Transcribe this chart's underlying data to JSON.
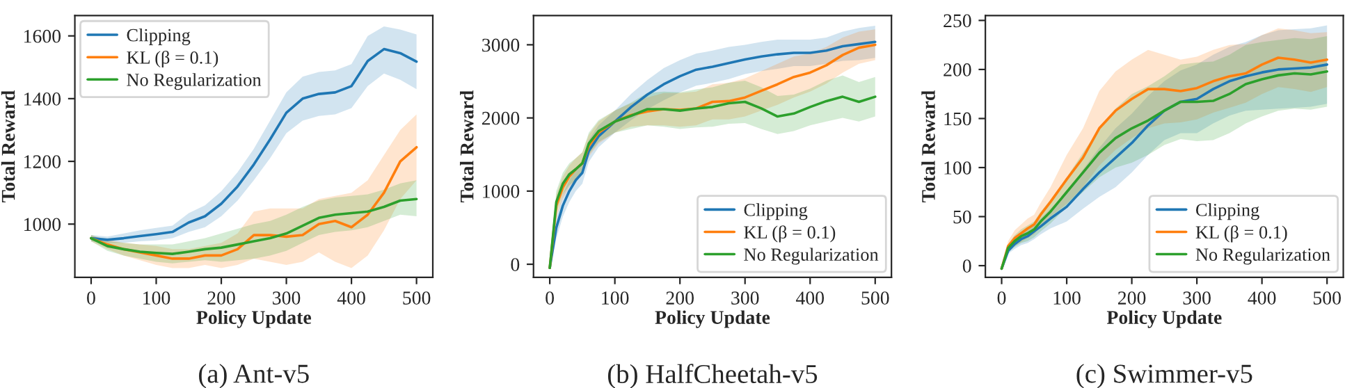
{
  "chart_data": [
    {
      "type": "line",
      "title": "(a) Ant-v5",
      "xlabel": "Policy Update",
      "ylabel": "Total Reward",
      "xlim": [
        -25,
        525
      ],
      "xticks": [
        0,
        100,
        200,
        300,
        400,
        500
      ],
      "ylim": [
        830,
        1665
      ],
      "yticks": [
        1000,
        1200,
        1400,
        1600
      ],
      "grid": false,
      "legend": "top left",
      "x": [
        0,
        25,
        50,
        75,
        100,
        125,
        150,
        175,
        200,
        225,
        250,
        275,
        300,
        325,
        350,
        375,
        400,
        425,
        450,
        475,
        500
      ],
      "series": [
        {
          "name": "Clipping",
          "color": "#1f77b4",
          "values": [
            955,
            950,
            955,
            962,
            968,
            975,
            1005,
            1025,
            1065,
            1120,
            1190,
            1270,
            1355,
            1400,
            1415,
            1420,
            1440,
            1520,
            1558,
            1545,
            1518
          ],
          "lower": [
            945,
            940,
            940,
            945,
            948,
            955,
            975,
            990,
            1025,
            1075,
            1140,
            1210,
            1290,
            1330,
            1345,
            1350,
            1370,
            1440,
            1480,
            1460,
            1430
          ],
          "upper": [
            965,
            960,
            970,
            980,
            988,
            995,
            1035,
            1060,
            1105,
            1165,
            1240,
            1330,
            1420,
            1470,
            1485,
            1490,
            1510,
            1600,
            1630,
            1620,
            1605
          ]
        },
        {
          "name": "KL (β = 0.1)",
          "color": "#ff7f0e",
          "values": [
            955,
            935,
            920,
            910,
            900,
            890,
            890,
            900,
            900,
            920,
            965,
            965,
            960,
            965,
            1000,
            1010,
            990,
            1030,
            1100,
            1200,
            1245
          ],
          "lower": [
            945,
            920,
            900,
            885,
            870,
            860,
            860,
            870,
            860,
            870,
            890,
            880,
            870,
            880,
            910,
            880,
            860,
            900,
            980,
            1080,
            1140
          ],
          "upper": [
            965,
            950,
            940,
            935,
            930,
            920,
            920,
            930,
            940,
            970,
            1040,
            1050,
            1050,
            1050,
            1080,
            1090,
            1100,
            1140,
            1220,
            1300,
            1350
          ]
        },
        {
          "name": "No Regularization",
          "color": "#2ca02c",
          "values": [
            955,
            930,
            920,
            912,
            908,
            905,
            912,
            920,
            925,
            935,
            945,
            955,
            970,
            995,
            1020,
            1030,
            1035,
            1040,
            1055,
            1075,
            1080
          ],
          "lower": [
            945,
            915,
            900,
            890,
            880,
            875,
            880,
            885,
            880,
            885,
            890,
            900,
            915,
            940,
            965,
            975,
            980,
            990,
            1010,
            1030,
            1025
          ],
          "upper": [
            965,
            945,
            940,
            935,
            935,
            935,
            945,
            955,
            970,
            985,
            1000,
            1010,
            1030,
            1055,
            1075,
            1085,
            1090,
            1095,
            1110,
            1130,
            1140
          ]
        }
      ]
    },
    {
      "type": "line",
      "title": "(b) HalfCheetah-v5",
      "xlabel": "Policy Update",
      "ylabel": "Total Reward",
      "xlim": [
        -25,
        525
      ],
      "xticks": [
        0,
        100,
        200,
        300,
        400,
        500
      ],
      "ylim": [
        -180,
        3400
      ],
      "yticks": [
        0,
        1000,
        2000,
        3000
      ],
      "grid": false,
      "legend": "bottom right",
      "x": [
        0,
        10,
        20,
        30,
        40,
        50,
        60,
        75,
        100,
        125,
        150,
        175,
        200,
        225,
        250,
        275,
        300,
        325,
        350,
        375,
        400,
        425,
        450,
        475,
        500
      ],
      "series": [
        {
          "name": "Clipping",
          "color": "#1f77b4",
          "values": [
            -50,
            500,
            800,
            1000,
            1150,
            1250,
            1550,
            1750,
            1950,
            2150,
            2320,
            2460,
            2570,
            2660,
            2700,
            2750,
            2800,
            2840,
            2870,
            2890,
            2890,
            2920,
            2980,
            3010,
            3040
          ],
          "lower": [
            -70,
            350,
            650,
            850,
            1000,
            1100,
            1400,
            1600,
            1800,
            1970,
            2120,
            2240,
            2350,
            2440,
            2480,
            2530,
            2600,
            2640,
            2670,
            2710,
            2710,
            2740,
            2780,
            2790,
            2820
          ],
          "upper": [
            -30,
            650,
            950,
            1150,
            1300,
            1400,
            1700,
            1900,
            2100,
            2330,
            2520,
            2680,
            2790,
            2880,
            2920,
            2970,
            3000,
            3040,
            3070,
            3070,
            3070,
            3100,
            3180,
            3230,
            3260
          ]
        },
        {
          "name": "KL (β = 0.1)",
          "color": "#ff7f0e",
          "values": [
            -50,
            800,
            1050,
            1200,
            1300,
            1380,
            1620,
            1800,
            1950,
            2040,
            2090,
            2120,
            2110,
            2130,
            2220,
            2230,
            2280,
            2370,
            2460,
            2560,
            2620,
            2720,
            2860,
            2960,
            3000
          ],
          "lower": [
            -70,
            650,
            900,
            1050,
            1150,
            1230,
            1470,
            1650,
            1800,
            1880,
            1900,
            1900,
            1880,
            1900,
            1980,
            1980,
            2020,
            2100,
            2180,
            2280,
            2360,
            2470,
            2620,
            2740,
            2790
          ],
          "upper": [
            -30,
            950,
            1200,
            1350,
            1450,
            1530,
            1770,
            1950,
            2100,
            2200,
            2280,
            2340,
            2340,
            2360,
            2460,
            2480,
            2540,
            2640,
            2740,
            2840,
            2880,
            2970,
            3100,
            3180,
            3210
          ]
        },
        {
          "name": "No Regularization",
          "color": "#2ca02c",
          "values": [
            -50,
            850,
            1100,
            1230,
            1300,
            1380,
            1650,
            1820,
            1950,
            2030,
            2120,
            2120,
            2100,
            2130,
            2150,
            2200,
            2220,
            2130,
            2020,
            2060,
            2150,
            2230,
            2290,
            2220,
            2290
          ],
          "lower": [
            -70,
            700,
            950,
            1080,
            1150,
            1230,
            1500,
            1670,
            1800,
            1850,
            1900,
            1880,
            1850,
            1870,
            1880,
            1920,
            1930,
            1850,
            1780,
            1820,
            1900,
            1950,
            2000,
            1950,
            2020
          ],
          "upper": [
            -30,
            1000,
            1250,
            1380,
            1450,
            1530,
            1800,
            1970,
            2100,
            2210,
            2340,
            2360,
            2350,
            2390,
            2420,
            2480,
            2510,
            2420,
            2300,
            2320,
            2400,
            2510,
            2580,
            2490,
            2560
          ]
        }
      ]
    },
    {
      "type": "line",
      "title": "(c) Swimmer-v5",
      "xlabel": "Policy Update",
      "ylabel": "Total Reward",
      "xlim": [
        -25,
        525
      ],
      "xticks": [
        0,
        100,
        200,
        300,
        400,
        500
      ],
      "ylim": [
        -12,
        255
      ],
      "yticks": [
        0,
        50,
        100,
        150,
        200,
        250
      ],
      "grid": false,
      "legend": "bottom right",
      "x": [
        0,
        10,
        20,
        30,
        40,
        50,
        60,
        75,
        100,
        125,
        150,
        175,
        200,
        225,
        250,
        275,
        300,
        325,
        350,
        375,
        400,
        425,
        450,
        475,
        500
      ],
      "series": [
        {
          "name": "Clipping",
          "color": "#1f77b4",
          "values": [
            -3,
            15,
            22,
            27,
            30,
            35,
            40,
            48,
            60,
            78,
            95,
            110,
            125,
            143,
            158,
            167,
            170,
            180,
            188,
            193,
            197,
            200,
            201,
            202,
            205
          ],
          "lower": [
            -3,
            12,
            17,
            21,
            23,
            27,
            32,
            38,
            45,
            58,
            70,
            80,
            95,
            113,
            128,
            135,
            135,
            145,
            153,
            158,
            159,
            160,
            161,
            162,
            165
          ],
          "upper": [
            -3,
            18,
            27,
            33,
            37,
            43,
            48,
            58,
            75,
            98,
            120,
            140,
            155,
            173,
            188,
            199,
            205,
            215,
            223,
            228,
            235,
            240,
            241,
            242,
            245
          ]
        },
        {
          "name": "KL (β = 0.1)",
          "color": "#ff7f0e",
          "values": [
            -3,
            20,
            28,
            33,
            38,
            42,
            52,
            65,
            88,
            110,
            140,
            158,
            170,
            180,
            180,
            178,
            181,
            188,
            193,
            196,
            205,
            212,
            210,
            207,
            210
          ],
          "lower": [
            -3,
            15,
            20,
            24,
            28,
            32,
            40,
            50,
            63,
            80,
            102,
            118,
            130,
            140,
            145,
            146,
            149,
            156,
            161,
            166,
            175,
            182,
            180,
            177,
            182
          ],
          "upper": [
            -3,
            25,
            36,
            42,
            48,
            52,
            64,
            80,
            113,
            140,
            178,
            198,
            210,
            220,
            215,
            210,
            213,
            220,
            225,
            226,
            235,
            242,
            240,
            237,
            238
          ]
        },
        {
          "name": "No Regularization",
          "color": "#2ca02c",
          "values": [
            -3,
            18,
            25,
            30,
            33,
            37,
            45,
            55,
            75,
            95,
            115,
            130,
            140,
            148,
            158,
            167,
            167,
            168,
            175,
            185,
            190,
            194,
            196,
            195,
            198
          ],
          "lower": [
            -3,
            14,
            19,
            23,
            25,
            29,
            35,
            43,
            60,
            75,
            90,
            100,
            105,
            113,
            123,
            129,
            127,
            128,
            135,
            145,
            152,
            158,
            160,
            159,
            162
          ],
          "upper": [
            -3,
            22,
            31,
            37,
            41,
            45,
            55,
            67,
            90,
            115,
            140,
            160,
            175,
            183,
            193,
            205,
            207,
            208,
            215,
            225,
            228,
            230,
            232,
            231,
            234
          ]
        }
      ]
    }
  ]
}
